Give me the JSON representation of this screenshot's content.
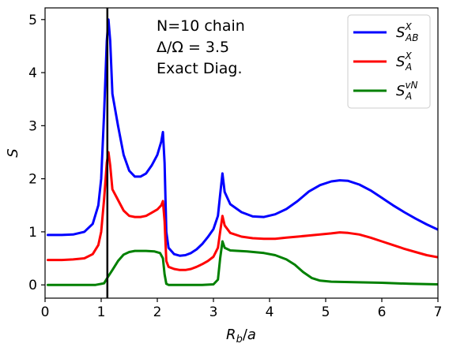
{
  "chart_data": {
    "type": "line",
    "xlabel": "R_b/a",
    "ylabel": "S",
    "xlim": [
      0,
      7
    ],
    "ylim": [
      -0.25,
      5.22
    ],
    "xticks": [
      0,
      1,
      2,
      3,
      4,
      5,
      6,
      7
    ],
    "yticks": [
      0,
      1,
      2,
      3,
      4,
      5
    ],
    "annotation_lines": [
      "N=10 chain",
      "Δ/Ω = 3.5",
      "Exact Diag."
    ],
    "vline": {
      "x": 1.11,
      "color": "#000000"
    },
    "grid": false,
    "legend_position": "top-right",
    "series": [
      {
        "name": "S^X_AB",
        "legend_main": "S",
        "legend_sup": "X",
        "legend_sub": "AB",
        "color": "#0000ff",
        "points": [
          [
            0.05,
            0.94
          ],
          [
            0.3,
            0.94
          ],
          [
            0.5,
            0.95
          ],
          [
            0.7,
            1.0
          ],
          [
            0.85,
            1.15
          ],
          [
            0.95,
            1.5
          ],
          [
            1.0,
            2.0
          ],
          [
            1.05,
            3.2
          ],
          [
            1.1,
            4.6
          ],
          [
            1.13,
            5.0
          ],
          [
            1.16,
            4.6
          ],
          [
            1.2,
            3.6
          ],
          [
            1.3,
            3.0
          ],
          [
            1.4,
            2.45
          ],
          [
            1.5,
            2.15
          ],
          [
            1.6,
            2.04
          ],
          [
            1.7,
            2.04
          ],
          [
            1.8,
            2.1
          ],
          [
            1.9,
            2.25
          ],
          [
            2.0,
            2.45
          ],
          [
            2.07,
            2.7
          ],
          [
            2.1,
            2.88
          ],
          [
            2.13,
            2.3
          ],
          [
            2.16,
            1.0
          ],
          [
            2.2,
            0.7
          ],
          [
            2.3,
            0.58
          ],
          [
            2.4,
            0.55
          ],
          [
            2.5,
            0.56
          ],
          [
            2.6,
            0.6
          ],
          [
            2.7,
            0.67
          ],
          [
            2.8,
            0.77
          ],
          [
            2.9,
            0.9
          ],
          [
            3.0,
            1.05
          ],
          [
            3.08,
            1.3
          ],
          [
            3.12,
            1.7
          ],
          [
            3.16,
            2.1
          ],
          [
            3.2,
            1.75
          ],
          [
            3.3,
            1.52
          ],
          [
            3.5,
            1.37
          ],
          [
            3.7,
            1.29
          ],
          [
            3.9,
            1.28
          ],
          [
            4.1,
            1.33
          ],
          [
            4.3,
            1.43
          ],
          [
            4.5,
            1.58
          ],
          [
            4.7,
            1.76
          ],
          [
            4.9,
            1.88
          ],
          [
            5.1,
            1.95
          ],
          [
            5.25,
            1.97
          ],
          [
            5.4,
            1.96
          ],
          [
            5.6,
            1.89
          ],
          [
            5.8,
            1.78
          ],
          [
            6.0,
            1.64
          ],
          [
            6.2,
            1.5
          ],
          [
            6.4,
            1.37
          ],
          [
            6.6,
            1.25
          ],
          [
            6.8,
            1.14
          ],
          [
            7.0,
            1.04
          ]
        ]
      },
      {
        "name": "S^X_A",
        "legend_main": "S",
        "legend_sup": "X",
        "legend_sub": "A",
        "color": "#ff0000",
        "points": [
          [
            0.05,
            0.47
          ],
          [
            0.3,
            0.47
          ],
          [
            0.5,
            0.48
          ],
          [
            0.7,
            0.5
          ],
          [
            0.85,
            0.58
          ],
          [
            0.95,
            0.75
          ],
          [
            1.0,
            1.0
          ],
          [
            1.05,
            1.6
          ],
          [
            1.1,
            2.3
          ],
          [
            1.13,
            2.5
          ],
          [
            1.16,
            2.25
          ],
          [
            1.2,
            1.8
          ],
          [
            1.3,
            1.6
          ],
          [
            1.4,
            1.4
          ],
          [
            1.5,
            1.3
          ],
          [
            1.6,
            1.28
          ],
          [
            1.7,
            1.28
          ],
          [
            1.8,
            1.3
          ],
          [
            1.9,
            1.36
          ],
          [
            2.0,
            1.42
          ],
          [
            2.07,
            1.5
          ],
          [
            2.1,
            1.58
          ],
          [
            2.13,
            1.2
          ],
          [
            2.16,
            0.45
          ],
          [
            2.2,
            0.34
          ],
          [
            2.3,
            0.3
          ],
          [
            2.4,
            0.28
          ],
          [
            2.5,
            0.28
          ],
          [
            2.6,
            0.3
          ],
          [
            2.7,
            0.34
          ],
          [
            2.8,
            0.39
          ],
          [
            2.9,
            0.45
          ],
          [
            3.0,
            0.53
          ],
          [
            3.08,
            0.7
          ],
          [
            3.12,
            1.0
          ],
          [
            3.16,
            1.3
          ],
          [
            3.2,
            1.12
          ],
          [
            3.3,
            0.98
          ],
          [
            3.5,
            0.91
          ],
          [
            3.7,
            0.88
          ],
          [
            3.9,
            0.87
          ],
          [
            4.1,
            0.87
          ],
          [
            4.3,
            0.89
          ],
          [
            4.5,
            0.91
          ],
          [
            4.7,
            0.93
          ],
          [
            4.9,
            0.95
          ],
          [
            5.1,
            0.97
          ],
          [
            5.25,
            0.99
          ],
          [
            5.4,
            0.98
          ],
          [
            5.6,
            0.95
          ],
          [
            5.8,
            0.89
          ],
          [
            6.0,
            0.82
          ],
          [
            6.2,
            0.75
          ],
          [
            6.4,
            0.68
          ],
          [
            6.6,
            0.62
          ],
          [
            6.8,
            0.56
          ],
          [
            7.0,
            0.52
          ]
        ]
      },
      {
        "name": "S^vN_A",
        "legend_main": "S",
        "legend_sup": "vN",
        "legend_sub": "A",
        "color": "#008000",
        "points": [
          [
            0.05,
            0.0
          ],
          [
            0.5,
            0.0
          ],
          [
            0.9,
            0.0
          ],
          [
            1.05,
            0.03
          ],
          [
            1.12,
            0.15
          ],
          [
            1.2,
            0.28
          ],
          [
            1.3,
            0.45
          ],
          [
            1.4,
            0.57
          ],
          [
            1.5,
            0.62
          ],
          [
            1.6,
            0.64
          ],
          [
            1.8,
            0.64
          ],
          [
            1.95,
            0.63
          ],
          [
            2.05,
            0.6
          ],
          [
            2.1,
            0.5
          ],
          [
            2.13,
            0.2
          ],
          [
            2.16,
            0.02
          ],
          [
            2.2,
            0.0
          ],
          [
            2.5,
            0.0
          ],
          [
            2.8,
            0.0
          ],
          [
            3.0,
            0.01
          ],
          [
            3.08,
            0.1
          ],
          [
            3.12,
            0.5
          ],
          [
            3.16,
            0.82
          ],
          [
            3.2,
            0.7
          ],
          [
            3.3,
            0.65
          ],
          [
            3.6,
            0.63
          ],
          [
            3.9,
            0.6
          ],
          [
            4.1,
            0.56
          ],
          [
            4.3,
            0.48
          ],
          [
            4.45,
            0.38
          ],
          [
            4.6,
            0.24
          ],
          [
            4.75,
            0.13
          ],
          [
            4.9,
            0.08
          ],
          [
            5.1,
            0.06
          ],
          [
            5.5,
            0.05
          ],
          [
            6.0,
            0.04
          ],
          [
            6.5,
            0.02
          ],
          [
            7.0,
            0.01
          ]
        ]
      }
    ]
  }
}
